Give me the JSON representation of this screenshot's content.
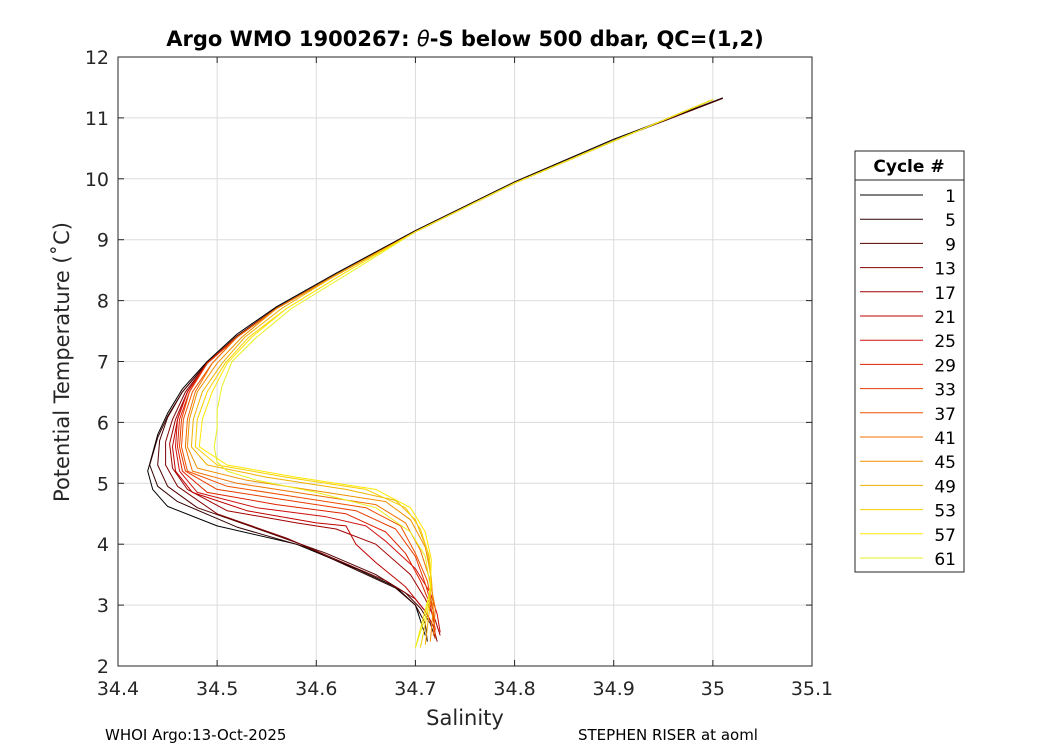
{
  "chart_data": {
    "type": "line",
    "title_prefix": "Argo WMO 1900267: ",
    "title_theta": "θ",
    "title_suffix": "-S below 500 dbar,  QC=(1,2)",
    "xlabel": "Salinity",
    "ylabel": "Potential Temperature (˚C)",
    "xlim": [
      34.4,
      35.1
    ],
    "ylim": [
      2,
      12
    ],
    "xticks": [
      "34.4",
      "34.5",
      "34.6",
      "34.7",
      "34.8",
      "34.9",
      "35",
      "35.1"
    ],
    "yticks": [
      "2",
      "3",
      "4",
      "5",
      "6",
      "7",
      "8",
      "9",
      "10",
      "11",
      "12"
    ],
    "grid": true,
    "legend_title": "Cycle #",
    "legend_position": "right",
    "colors": {
      "c1": "#000000",
      "c5": "#300000",
      "c9": "#500000",
      "c13": "#800000",
      "c17": "#a00000",
      "c21": "#c00000",
      "c25": "#d01010",
      "c29": "#e02000",
      "c33": "#e83c00",
      "c37": "#f05000",
      "c41": "#f07000",
      "c45": "#f09000",
      "c49": "#f0b000",
      "c53": "#f8d000",
      "c57": "#ffe800",
      "c61": "#e8f020"
    },
    "series": [
      {
        "name": "1",
        "color": "#000000",
        "x": [
          35.01,
          34.9,
          34.8,
          34.7,
          34.62,
          34.56,
          34.52,
          34.49,
          34.465,
          34.45,
          34.44,
          34.435,
          34.43,
          34.435,
          34.45,
          34.5,
          34.58,
          34.64,
          34.68,
          34.7,
          34.705,
          34.71
        ],
        "y": [
          11.33,
          10.65,
          9.95,
          9.15,
          8.45,
          7.9,
          7.45,
          7.0,
          6.55,
          6.15,
          5.8,
          5.5,
          5.2,
          4.9,
          4.62,
          4.3,
          4.0,
          3.6,
          3.3,
          3.0,
          2.75,
          2.5
        ]
      },
      {
        "name": "5",
        "color": "#300000",
        "x": [
          35.0,
          34.9,
          34.8,
          34.7,
          34.62,
          34.56,
          34.52,
          34.49,
          34.465,
          34.45,
          34.44,
          34.432,
          34.44,
          34.46,
          34.52,
          34.59,
          34.64,
          34.68,
          34.7,
          34.71,
          34.712
        ],
        "y": [
          11.3,
          10.62,
          9.93,
          9.13,
          8.42,
          7.88,
          7.4,
          6.98,
          6.5,
          6.1,
          5.75,
          5.3,
          4.95,
          4.7,
          4.28,
          3.95,
          3.58,
          3.28,
          3.0,
          2.7,
          2.4
        ]
      },
      {
        "name": "9",
        "color": "#500000",
        "x": [
          35.01,
          34.9,
          34.8,
          34.7,
          34.62,
          34.56,
          34.52,
          34.49,
          34.465,
          34.45,
          34.442,
          34.44,
          34.45,
          34.48,
          34.55,
          34.61,
          34.66,
          34.69,
          34.705,
          34.715,
          34.72
        ],
        "y": [
          11.32,
          10.63,
          9.94,
          9.14,
          8.43,
          7.88,
          7.42,
          6.98,
          6.5,
          6.08,
          5.7,
          5.3,
          4.95,
          4.6,
          4.2,
          3.85,
          3.5,
          3.2,
          2.95,
          2.7,
          2.45
        ]
      },
      {
        "name": "13",
        "color": "#800000",
        "x": [
          35.0,
          34.9,
          34.8,
          34.7,
          34.62,
          34.56,
          34.52,
          34.49,
          34.468,
          34.455,
          34.448,
          34.448,
          34.46,
          34.5,
          34.57,
          34.62,
          34.67,
          34.7,
          34.71,
          34.718,
          34.722
        ],
        "y": [
          11.3,
          10.62,
          9.93,
          9.13,
          8.42,
          7.87,
          7.4,
          6.97,
          6.5,
          6.05,
          5.68,
          5.3,
          4.95,
          4.5,
          4.1,
          3.75,
          3.4,
          3.1,
          2.9,
          2.65,
          2.4
        ]
      },
      {
        "name": "17",
        "color": "#a00000",
        "x": [
          35.0,
          34.9,
          34.8,
          34.7,
          34.62,
          34.56,
          34.52,
          34.49,
          34.47,
          34.458,
          34.452,
          34.455,
          34.47,
          34.51,
          34.58,
          34.62,
          34.66,
          34.695,
          34.71,
          34.72,
          34.725
        ],
        "y": [
          11.3,
          10.62,
          9.93,
          9.13,
          8.42,
          7.87,
          7.4,
          6.97,
          6.5,
          6.05,
          5.65,
          5.25,
          4.9,
          4.55,
          4.35,
          4.25,
          4.0,
          3.5,
          3.1,
          2.75,
          2.5
        ]
      },
      {
        "name": "21",
        "color": "#c00000",
        "x": [
          35.0,
          34.9,
          34.8,
          34.7,
          34.62,
          34.56,
          34.52,
          34.49,
          34.47,
          34.46,
          34.455,
          34.458,
          34.475,
          34.53,
          34.6,
          34.63,
          34.64,
          34.66,
          34.69,
          34.71,
          34.72
        ],
        "y": [
          11.3,
          10.62,
          9.93,
          9.13,
          8.42,
          7.87,
          7.4,
          6.97,
          6.5,
          6.05,
          5.6,
          5.2,
          4.85,
          4.55,
          4.35,
          4.3,
          4.0,
          3.7,
          3.3,
          2.9,
          2.6
        ]
      },
      {
        "name": "25",
        "color": "#d01010",
        "x": [
          35.0,
          34.9,
          34.8,
          34.7,
          34.62,
          34.56,
          34.52,
          34.49,
          34.47,
          34.46,
          34.458,
          34.462,
          34.48,
          34.54,
          34.61,
          34.65,
          34.67,
          34.7,
          34.715,
          34.722,
          34.725
        ],
        "y": [
          11.3,
          10.62,
          9.93,
          9.13,
          8.42,
          7.87,
          7.4,
          6.97,
          6.5,
          6.05,
          5.6,
          5.2,
          4.85,
          4.6,
          4.45,
          4.3,
          4.05,
          3.6,
          3.2,
          2.85,
          2.55
        ]
      },
      {
        "name": "29",
        "color": "#e02000",
        "x": [
          35.0,
          34.9,
          34.8,
          34.7,
          34.62,
          34.56,
          34.52,
          34.49,
          34.472,
          34.462,
          34.46,
          34.465,
          34.49,
          34.56,
          34.63,
          34.67,
          34.69,
          34.705,
          34.715,
          34.72
        ],
        "y": [
          11.3,
          10.62,
          9.93,
          9.13,
          8.42,
          7.87,
          7.4,
          6.97,
          6.5,
          6.05,
          5.6,
          5.2,
          4.85,
          4.65,
          4.5,
          4.2,
          3.85,
          3.4,
          3.0,
          2.6
        ]
      },
      {
        "name": "33",
        "color": "#e83c00",
        "x": [
          35.0,
          34.9,
          34.8,
          34.7,
          34.62,
          34.56,
          34.52,
          34.49,
          34.472,
          34.464,
          34.462,
          34.468,
          34.5,
          34.58,
          34.64,
          34.68,
          34.7,
          34.71,
          34.718,
          34.72
        ],
        "y": [
          11.3,
          10.62,
          9.93,
          9.13,
          8.42,
          7.87,
          7.4,
          6.97,
          6.5,
          6.05,
          5.6,
          5.2,
          4.9,
          4.7,
          4.55,
          4.25,
          3.8,
          3.35,
          2.9,
          2.5
        ]
      },
      {
        "name": "37",
        "color": "#f05000",
        "x": [
          35.0,
          34.9,
          34.8,
          34.7,
          34.62,
          34.56,
          34.52,
          34.495,
          34.475,
          34.466,
          34.464,
          34.47,
          34.51,
          34.59,
          34.65,
          34.685,
          34.7,
          34.712,
          34.718,
          34.72
        ],
        "y": [
          11.3,
          10.62,
          9.93,
          9.13,
          8.42,
          7.87,
          7.4,
          6.97,
          6.5,
          6.05,
          5.6,
          5.2,
          4.95,
          4.75,
          4.6,
          4.3,
          3.85,
          3.4,
          2.9,
          2.45
        ]
      },
      {
        "name": "41",
        "color": "#f07000",
        "x": [
          35.0,
          34.9,
          34.8,
          34.7,
          34.62,
          34.56,
          34.52,
          34.495,
          34.478,
          34.47,
          34.468,
          34.475,
          34.52,
          34.6,
          34.66,
          34.69,
          34.705,
          34.714,
          34.72,
          34.718
        ],
        "y": [
          11.3,
          10.62,
          9.93,
          9.13,
          8.42,
          7.87,
          7.4,
          6.97,
          6.5,
          6.05,
          5.6,
          5.2,
          5.0,
          4.8,
          4.65,
          4.35,
          3.9,
          3.45,
          2.95,
          2.5
        ]
      },
      {
        "name": "45",
        "color": "#f09000",
        "x": [
          35.0,
          34.9,
          34.8,
          34.7,
          34.62,
          34.56,
          34.525,
          34.5,
          34.48,
          34.472,
          34.47,
          34.48,
          34.53,
          34.61,
          34.67,
          34.695,
          34.71,
          34.716,
          34.718,
          34.715
        ],
        "y": [
          11.3,
          10.62,
          9.93,
          9.13,
          8.42,
          7.87,
          7.4,
          6.97,
          6.5,
          6.05,
          5.6,
          5.25,
          5.05,
          4.85,
          4.7,
          4.4,
          3.95,
          3.45,
          2.95,
          2.4
        ]
      },
      {
        "name": "49",
        "color": "#f0b000",
        "x": [
          35.0,
          34.9,
          34.8,
          34.7,
          34.62,
          34.565,
          34.528,
          34.505,
          34.485,
          34.476,
          34.474,
          34.49,
          34.55,
          34.63,
          34.68,
          34.7,
          34.712,
          34.716,
          34.714,
          34.71
        ],
        "y": [
          11.3,
          10.62,
          9.93,
          9.13,
          8.42,
          7.87,
          7.4,
          6.97,
          6.5,
          6.05,
          5.6,
          5.3,
          5.1,
          4.9,
          4.72,
          4.4,
          3.9,
          3.4,
          2.9,
          2.35
        ]
      },
      {
        "name": "53",
        "color": "#f8d000",
        "x": [
          35.0,
          34.9,
          34.8,
          34.7,
          34.625,
          34.57,
          34.532,
          34.508,
          34.49,
          34.48,
          34.478,
          34.5,
          34.57,
          34.65,
          34.69,
          34.705,
          34.714,
          34.716,
          34.712,
          34.705
        ],
        "y": [
          11.3,
          10.62,
          9.93,
          9.13,
          8.42,
          7.87,
          7.4,
          6.97,
          6.5,
          6.05,
          5.6,
          5.3,
          5.1,
          4.9,
          4.6,
          4.25,
          3.8,
          3.3,
          2.85,
          2.3
        ]
      },
      {
        "name": "57",
        "color": "#ffe800",
        "x": [
          35.0,
          34.9,
          34.8,
          34.7,
          34.625,
          34.57,
          34.535,
          34.51,
          34.495,
          34.485,
          34.482,
          34.51,
          34.58,
          34.66,
          34.695,
          34.71,
          34.716,
          34.715,
          34.708,
          34.7
        ],
        "y": [
          11.3,
          10.62,
          9.93,
          9.13,
          8.42,
          7.87,
          7.4,
          6.97,
          6.5,
          6.05,
          5.6,
          5.3,
          5.1,
          4.9,
          4.6,
          4.2,
          3.75,
          3.25,
          2.8,
          2.3
        ]
      },
      {
        "name": "61",
        "color": "#e8f020",
        "x": [
          35.0,
          34.9,
          34.8,
          34.7,
          34.63,
          34.575,
          34.54,
          34.515,
          34.505,
          34.5,
          34.5,
          34.497,
          34.5,
          34.51,
          34.54,
          34.6,
          34.66,
          34.695,
          34.71,
          34.715,
          34.71,
          34.7
        ],
        "y": [
          11.3,
          10.62,
          9.93,
          9.13,
          8.42,
          7.87,
          7.4,
          7.0,
          6.6,
          6.2,
          5.9,
          5.6,
          5.35,
          5.2,
          5.05,
          4.85,
          4.6,
          4.2,
          3.8,
          3.3,
          2.8,
          2.3
        ]
      }
    ]
  },
  "footer": {
    "left": "WHOI Argo:13-Oct-2025",
    "right": "STEPHEN RISER at aoml"
  }
}
